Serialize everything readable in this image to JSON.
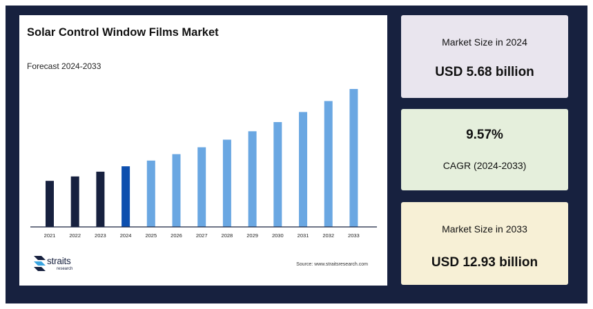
{
  "chart_data": {
    "type": "bar",
    "title": "Solar Control Window Films Market",
    "subtitle": "Forecast 2024-2033",
    "xlabel": "",
    "ylabel": "",
    "categories": [
      "2021",
      "2022",
      "2023",
      "2024",
      "2025",
      "2026",
      "2027",
      "2028",
      "2029",
      "2030",
      "2031",
      "2032",
      "2033"
    ],
    "values": [
      4.32,
      4.73,
      5.18,
      5.68,
      6.22,
      6.82,
      7.47,
      8.18,
      8.97,
      9.83,
      10.77,
      11.8,
      12.93
    ],
    "bar_colors": [
      "#17213f",
      "#17213f",
      "#17213f",
      "#0d4fae",
      "#6aa7e2",
      "#6aa7e2",
      "#6aa7e2",
      "#6aa7e2",
      "#6aa7e2",
      "#6aa7e2",
      "#6aa7e2",
      "#6aa7e2",
      "#6aa7e2"
    ],
    "grid": false,
    "legend": "none"
  },
  "branding": {
    "logo_name": "straits",
    "logo_sub": "research",
    "source": "Source: www.straitsresearch.com"
  },
  "stats": {
    "size_2024_label": "Market Size in 2024",
    "size_2024_value": "USD 5.68 billion",
    "cagr_value": "9.57%",
    "cagr_label": "CAGR (2024-2033)",
    "size_2033_label": "Market Size in 2033",
    "size_2033_value": "USD 12.93 billion"
  },
  "colors": {
    "background": "#17213f",
    "historical": "#17213f",
    "base_year": "#0d4fae",
    "forecast": "#6aa7e2"
  }
}
